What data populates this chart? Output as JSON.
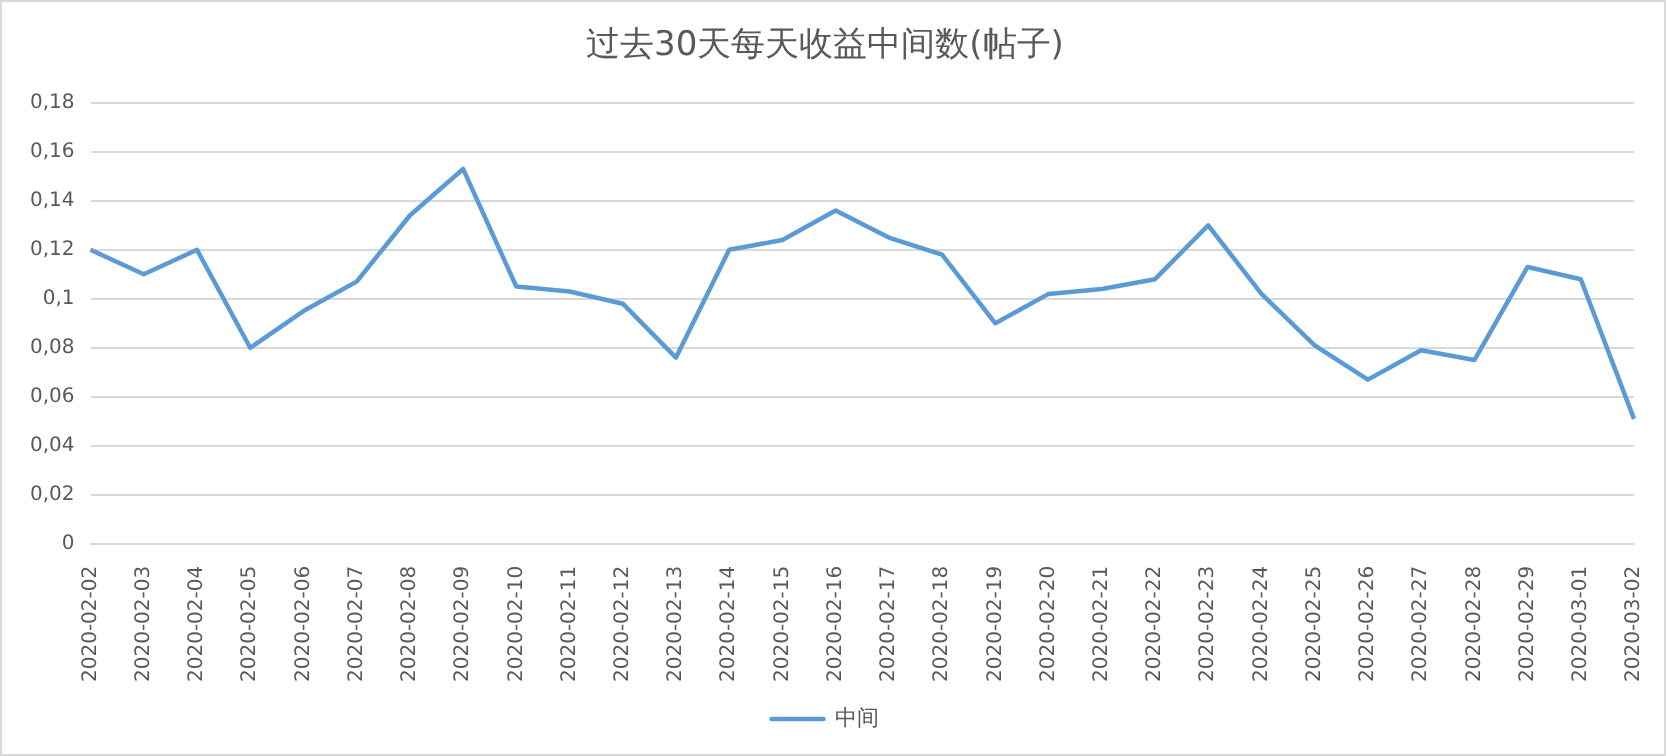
{
  "chart_data": {
    "type": "line",
    "title": "过去30天每天收益中间数(帖子)",
    "categories": [
      "2020-02-02",
      "2020-02-03",
      "2020-02-04",
      "2020-02-05",
      "2020-02-06",
      "2020-02-07",
      "2020-02-08",
      "2020-02-09",
      "2020-02-10",
      "2020-02-11",
      "2020-02-12",
      "2020-02-13",
      "2020-02-14",
      "2020-02-15",
      "2020-02-16",
      "2020-02-17",
      "2020-02-18",
      "2020-02-19",
      "2020-02-20",
      "2020-02-21",
      "2020-02-22",
      "2020-02-23",
      "2020-02-24",
      "2020-02-25",
      "2020-02-26",
      "2020-02-27",
      "2020-02-28",
      "2020-02-29",
      "2020-03-01",
      "2020-03-02"
    ],
    "series": [
      {
        "name": "中间",
        "color": "#5b9bd5",
        "values": [
          0.12,
          0.11,
          0.12,
          0.08,
          0.095,
          0.107,
          0.134,
          0.153,
          0.105,
          0.103,
          0.098,
          0.076,
          0.12,
          0.124,
          0.136,
          0.125,
          0.118,
          0.09,
          0.102,
          0.104,
          0.108,
          0.13,
          0.102,
          0.081,
          0.067,
          0.079,
          0.075,
          0.113,
          0.108,
          0.051
        ]
      }
    ],
    "ylim": [
      0,
      0.18
    ],
    "yticks": [
      0,
      {
        "value": 0.02,
        "label": "0,02"
      },
      {
        "value": 0.04,
        "label": "0,04"
      },
      {
        "value": 0.06,
        "label": "0,06"
      },
      {
        "value": 0.08,
        "label": "0,08"
      },
      {
        "value": 0.1,
        "label": "0,1"
      },
      {
        "value": 0.12,
        "label": "0,12"
      },
      {
        "value": 0.14,
        "label": "0,14"
      },
      {
        "value": 0.16,
        "label": "0,16"
      },
      {
        "value": 0.18,
        "label": "0,18"
      }
    ],
    "grid": "y",
    "legend": "bottom",
    "marker": "none",
    "line_style": "solid"
  }
}
